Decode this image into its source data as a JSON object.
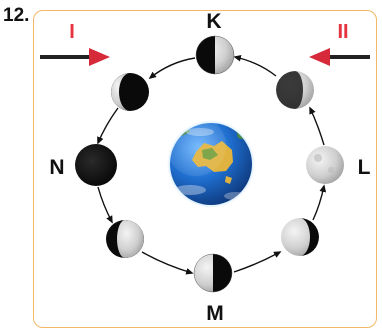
{
  "question": {
    "number": "12."
  },
  "arrows": {
    "left_label": "I",
    "right_label": "II",
    "label_color": "#e63340",
    "head_color": "#d62a3a"
  },
  "positions": {
    "top": "K",
    "left": "N",
    "bottom": "M",
    "right": "L"
  },
  "colors": {
    "frame": "#f2b866",
    "moon_light": "#d8d8d8",
    "moon_dark": "#0a0a0a",
    "ocean": "#1f6fd0",
    "land": "#e0b340"
  }
}
